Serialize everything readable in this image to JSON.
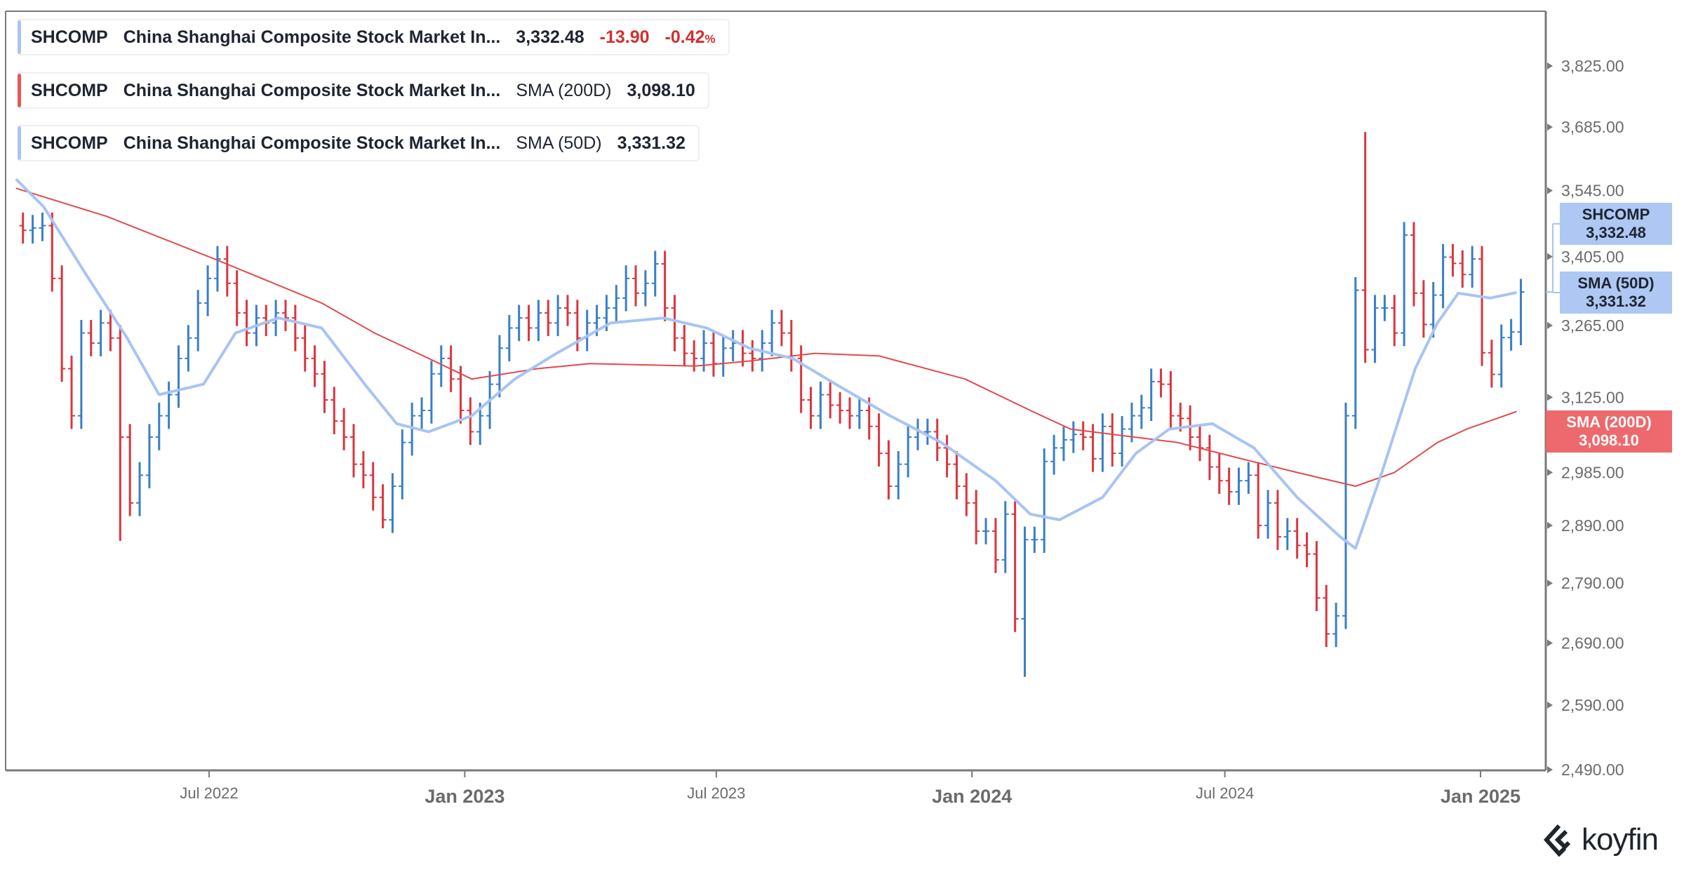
{
  "legend": [
    {
      "ticker": "SHCOMP",
      "name": "China Shanghai Composite Stock Market In...",
      "value": "3,332.48",
      "change": "-13.90",
      "change_pct": "-0.42",
      "pct_sign": "%",
      "color": "#a8c4f2"
    },
    {
      "ticker": "SHCOMP",
      "name": "China Shanghai Composite Stock Market In...",
      "indicator": "SMA (200D)",
      "value": "3,098.10",
      "color": "#e8575a"
    },
    {
      "ticker": "SHCOMP",
      "name": "China Shanghai Composite Stock Market In...",
      "indicator": "SMA (50D)",
      "value": "3,331.32",
      "color": "#a8c4f2"
    }
  ],
  "price_tags": [
    {
      "label": "SHCOMP",
      "value": "3,332.48"
    },
    {
      "label": "SMA (50D)",
      "value": "3,331.32"
    },
    {
      "label": "SMA (200D)",
      "value": "3,098.10"
    }
  ],
  "brand": "koyfin",
  "colors": {
    "up": "#3a7fc4",
    "down": "#d9363e",
    "sma50": "#a8c4f2",
    "sma200": "#e04b4b",
    "axis": "#777777"
  },
  "chart_data": {
    "type": "ohlc",
    "y_scale": "log",
    "ylim": [
      2490,
      3950
    ],
    "y_ticks": [
      "3,825.00",
      "3,685.00",
      "3,545.00",
      "3,405.00",
      "3,265.00",
      "3,125.00",
      "2,985.00",
      "2,890.00",
      "2,790.00",
      "2,690.00",
      "2,590.00",
      "2,490.00"
    ],
    "x_ticks": [
      {
        "label": "Jul 2022",
        "date": "2022-07-01"
      },
      {
        "label": "Jan 2023",
        "date": "2023-01-01"
      },
      {
        "label": "Jul 2023",
        "date": "2023-07-01"
      },
      {
        "label": "Jan 2024",
        "date": "2024-01-01"
      },
      {
        "label": "Jul 2024",
        "date": "2024-07-01"
      },
      {
        "label": "Jan 2025",
        "date": "2025-01-01"
      }
    ],
    "grid": false,
    "extremes": [
      {
        "date": "2024-10-07",
        "high": 3674
      },
      {
        "date": "2024-02-05",
        "low": 2635
      },
      {
        "date": "2022-04-25",
        "low": 2863
      },
      {
        "date": "2022-10-31",
        "low": 2885
      }
    ],
    "weekly_close": [
      [
        "2022-02-14",
        3460
      ],
      [
        "2022-02-21",
        3465
      ],
      [
        "2022-02-28",
        3470
      ],
      [
        "2022-03-07",
        3360
      ],
      [
        "2022-03-14",
        3180
      ],
      [
        "2022-03-21",
        3090
      ],
      [
        "2022-03-28",
        3250
      ],
      [
        "2022-04-04",
        3230
      ],
      [
        "2022-04-11",
        3270
      ],
      [
        "2022-04-18",
        3240
      ],
      [
        "2022-04-25",
        3050
      ],
      [
        "2022-05-02",
        2930
      ],
      [
        "2022-05-09",
        2980
      ],
      [
        "2022-05-16",
        3050
      ],
      [
        "2022-05-23",
        3090
      ],
      [
        "2022-05-30",
        3130
      ],
      [
        "2022-06-06",
        3200
      ],
      [
        "2022-06-13",
        3240
      ],
      [
        "2022-06-20",
        3310
      ],
      [
        "2022-06-27",
        3360
      ],
      [
        "2022-07-04",
        3400
      ],
      [
        "2022-07-11",
        3350
      ],
      [
        "2022-07-18",
        3290
      ],
      [
        "2022-07-25",
        3250
      ],
      [
        "2022-08-01",
        3280
      ],
      [
        "2022-08-08",
        3270
      ],
      [
        "2022-08-15",
        3290
      ],
      [
        "2022-08-22",
        3280
      ],
      [
        "2022-08-29",
        3240
      ],
      [
        "2022-09-05",
        3200
      ],
      [
        "2022-09-12",
        3170
      ],
      [
        "2022-09-19",
        3120
      ],
      [
        "2022-09-26",
        3080
      ],
      [
        "2022-10-03",
        3050
      ],
      [
        "2022-10-10",
        3000
      ],
      [
        "2022-10-17",
        2980
      ],
      [
        "2022-10-24",
        2940
      ],
      [
        "2022-10-31",
        2900
      ],
      [
        "2022-11-07",
        2960
      ],
      [
        "2022-11-14",
        3040
      ],
      [
        "2022-11-21",
        3090
      ],
      [
        "2022-11-28",
        3100
      ],
      [
        "2022-12-05",
        3170
      ],
      [
        "2022-12-12",
        3200
      ],
      [
        "2022-12-19",
        3160
      ],
      [
        "2022-12-26",
        3100
      ],
      [
        "2023-01-02",
        3060
      ],
      [
        "2023-01-09",
        3090
      ],
      [
        "2023-01-16",
        3150
      ],
      [
        "2023-01-23",
        3220
      ],
      [
        "2023-01-30",
        3260
      ],
      [
        "2023-02-06",
        3280
      ],
      [
        "2023-02-13",
        3260
      ],
      [
        "2023-02-20",
        3290
      ],
      [
        "2023-02-27",
        3270
      ],
      [
        "2023-03-06",
        3300
      ],
      [
        "2023-03-13",
        3290
      ],
      [
        "2023-03-20",
        3240
      ],
      [
        "2023-03-27",
        3270
      ],
      [
        "2023-04-03",
        3280
      ],
      [
        "2023-04-10",
        3300
      ],
      [
        "2023-04-17",
        3320
      ],
      [
        "2023-04-24",
        3360
      ],
      [
        "2023-05-01",
        3330
      ],
      [
        "2023-05-08",
        3350
      ],
      [
        "2023-05-15",
        3390
      ],
      [
        "2023-05-22",
        3300
      ],
      [
        "2023-05-29",
        3240
      ],
      [
        "2023-06-05",
        3210
      ],
      [
        "2023-06-12",
        3200
      ],
      [
        "2023-06-19",
        3230
      ],
      [
        "2023-06-26",
        3190
      ],
      [
        "2023-07-03",
        3220
      ],
      [
        "2023-07-10",
        3230
      ],
      [
        "2023-07-17",
        3210
      ],
      [
        "2023-07-24",
        3200
      ],
      [
        "2023-07-31",
        3230
      ],
      [
        "2023-08-07",
        3270
      ],
      [
        "2023-08-14",
        3250
      ],
      [
        "2023-08-21",
        3200
      ],
      [
        "2023-08-28",
        3120
      ],
      [
        "2023-09-04",
        3090
      ],
      [
        "2023-09-11",
        3130
      ],
      [
        "2023-09-18",
        3110
      ],
      [
        "2023-09-25",
        3100
      ],
      [
        "2023-10-02",
        3090
      ],
      [
        "2023-10-09",
        3100
      ],
      [
        "2023-10-16",
        3070
      ],
      [
        "2023-10-23",
        3020
      ],
      [
        "2023-10-30",
        2960
      ],
      [
        "2023-11-06",
        3000
      ],
      [
        "2023-11-13",
        3050
      ],
      [
        "2023-11-20",
        3060
      ],
      [
        "2023-11-27",
        3060
      ],
      [
        "2023-12-04",
        3030
      ],
      [
        "2023-12-11",
        3000
      ],
      [
        "2023-12-18",
        2960
      ],
      [
        "2023-12-25",
        2930
      ],
      [
        "2024-01-01",
        2880
      ],
      [
        "2024-01-08",
        2880
      ],
      [
        "2024-01-15",
        2830
      ],
      [
        "2024-01-22",
        2910
      ],
      [
        "2024-01-29",
        2730
      ],
      [
        "2024-02-05",
        2865
      ],
      [
        "2024-02-12",
        2865
      ],
      [
        "2024-02-19",
        3005
      ],
      [
        "2024-02-26",
        3030
      ],
      [
        "2024-03-04",
        3045
      ],
      [
        "2024-03-11",
        3055
      ],
      [
        "2024-03-18",
        3050
      ],
      [
        "2024-03-25",
        3010
      ],
      [
        "2024-04-01",
        3070
      ],
      [
        "2024-04-08",
        3020
      ],
      [
        "2024-04-15",
        3065
      ],
      [
        "2024-04-22",
        3090
      ],
      [
        "2024-04-29",
        3105
      ],
      [
        "2024-05-06",
        3155
      ],
      [
        "2024-05-13",
        3150
      ],
      [
        "2024-05-20",
        3090
      ],
      [
        "2024-05-27",
        3085
      ],
      [
        "2024-06-03",
        3050
      ],
      [
        "2024-06-10",
        3030
      ],
      [
        "2024-06-17",
        2995
      ],
      [
        "2024-06-24",
        2970
      ],
      [
        "2024-07-01",
        2950
      ],
      [
        "2024-07-08",
        2970
      ],
      [
        "2024-07-15",
        2980
      ],
      [
        "2024-07-22",
        2890
      ],
      [
        "2024-07-29",
        2930
      ],
      [
        "2024-08-05",
        2870
      ],
      [
        "2024-08-12",
        2880
      ],
      [
        "2024-08-19",
        2855
      ],
      [
        "2024-08-26",
        2840
      ],
      [
        "2024-09-02",
        2765
      ],
      [
        "2024-09-09",
        2705
      ],
      [
        "2024-09-16",
        2735
      ],
      [
        "2024-09-23",
        3090
      ],
      [
        "2024-09-30",
        3336
      ],
      [
        "2024-10-07",
        3217
      ],
      [
        "2024-10-14",
        3300
      ],
      [
        "2024-10-21",
        3300
      ],
      [
        "2024-10-28",
        3250
      ],
      [
        "2024-11-04",
        3450
      ],
      [
        "2024-11-11",
        3330
      ],
      [
        "2024-11-18",
        3267
      ],
      [
        "2024-11-25",
        3326
      ],
      [
        "2024-12-02",
        3404
      ],
      [
        "2024-12-09",
        3391
      ],
      [
        "2024-12-16",
        3368
      ],
      [
        "2024-12-23",
        3400
      ],
      [
        "2024-12-30",
        3211
      ],
      [
        "2025-01-06",
        3169
      ],
      [
        "2025-01-13",
        3241
      ],
      [
        "2025-01-20",
        3252
      ],
      [
        "2025-01-27",
        3332.48
      ]
    ],
    "series": [
      {
        "name": "SMA (200D)",
        "points": [
          [
            "2022-02-12",
            3550
          ],
          [
            "2022-04-18",
            3490
          ],
          [
            "2022-07-05",
            3400
          ],
          [
            "2022-09-20",
            3310
          ],
          [
            "2022-10-28",
            3250
          ],
          [
            "2022-12-06",
            3200
          ],
          [
            "2023-01-06",
            3160
          ],
          [
            "2023-02-22",
            3180
          ],
          [
            "2023-04-01",
            3190
          ],
          [
            "2023-06-16",
            3185
          ],
          [
            "2023-07-25",
            3195
          ],
          [
            "2023-09-10",
            3210
          ],
          [
            "2023-10-26",
            3205
          ],
          [
            "2023-12-27",
            3160
          ],
          [
            "2024-02-12",
            3100
          ],
          [
            "2024-03-12",
            3065
          ],
          [
            "2024-05-28",
            3040
          ],
          [
            "2024-07-13",
            3010
          ],
          [
            "2024-08-22",
            2985
          ],
          [
            "2024-10-03",
            2960
          ],
          [
            "2024-10-31",
            2985
          ],
          [
            "2024-12-01",
            3040
          ],
          [
            "2024-12-22",
            3065
          ],
          [
            "2025-01-27",
            3098.1
          ]
        ]
      },
      {
        "name": "SMA (50D)",
        "points": [
          [
            "2022-02-12",
            3570
          ],
          [
            "2022-03-04",
            3510
          ],
          [
            "2022-04-03",
            3370
          ],
          [
            "2022-05-03",
            3240
          ],
          [
            "2022-05-26",
            3130
          ],
          [
            "2022-06-27",
            3150
          ],
          [
            "2022-07-20",
            3250
          ],
          [
            "2022-08-20",
            3280
          ],
          [
            "2022-09-20",
            3260
          ],
          [
            "2022-10-21",
            3150
          ],
          [
            "2022-11-13",
            3075
          ],
          [
            "2022-12-06",
            3060
          ],
          [
            "2023-01-06",
            3090
          ],
          [
            "2023-02-06",
            3160
          ],
          [
            "2023-03-08",
            3210
          ],
          [
            "2023-04-16",
            3270
          ],
          [
            "2023-05-24",
            3280
          ],
          [
            "2023-06-24",
            3260
          ],
          [
            "2023-07-25",
            3220
          ],
          [
            "2023-08-25",
            3200
          ],
          [
            "2023-09-25",
            3150
          ],
          [
            "2023-11-03",
            3090
          ],
          [
            "2023-12-10",
            3040
          ],
          [
            "2024-01-18",
            2970
          ],
          [
            "2024-02-12",
            2910
          ],
          [
            "2024-03-04",
            2900
          ],
          [
            "2024-04-04",
            2940
          ],
          [
            "2024-04-28",
            3020
          ],
          [
            "2024-05-22",
            3065
          ],
          [
            "2024-06-22",
            3075
          ],
          [
            "2024-07-22",
            3030
          ],
          [
            "2024-08-22",
            2940
          ],
          [
            "2024-09-22",
            2870
          ],
          [
            "2024-10-03",
            2850
          ],
          [
            "2024-10-22",
            2985
          ],
          [
            "2024-11-15",
            3180
          ],
          [
            "2024-12-01",
            3270
          ],
          [
            "2024-12-16",
            3330
          ],
          [
            "2025-01-08",
            3320
          ],
          [
            "2025-01-27",
            3331.32
          ]
        ]
      }
    ]
  }
}
